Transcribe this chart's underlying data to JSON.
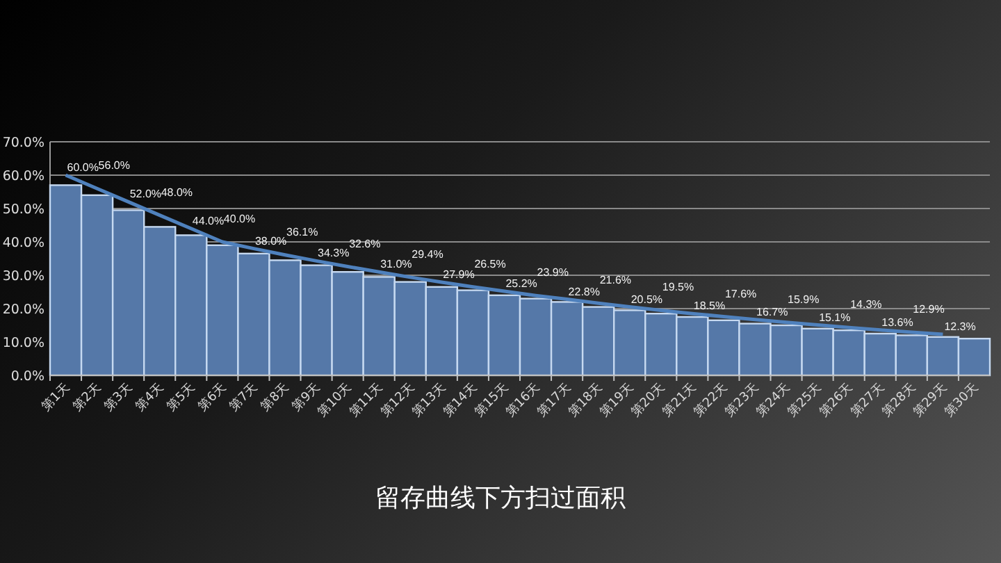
{
  "chart_data": {
    "type": "bar",
    "title": "留存曲线下方扫过面积",
    "categories": [
      "第1天",
      "第2天",
      "第3天",
      "第4天",
      "第5天",
      "第6天",
      "第7天",
      "第8天",
      "第9天",
      "第10天",
      "第11天",
      "第12天",
      "第13天",
      "第14天",
      "第15天",
      "第16天",
      "第17天",
      "第18天",
      "第19天",
      "第20天",
      "第21天",
      "第22天",
      "第23天",
      "第24天",
      "第25天",
      "第26天",
      "第27天",
      "第28天",
      "第29天",
      "第30天"
    ],
    "series": [
      {
        "color": "#5578a8",
        "values": [
          57,
          54,
          49.5,
          44.5,
          42,
          39,
          36.5,
          34.5,
          33,
          31,
          29.5,
          28,
          26.5,
          25.5,
          24,
          23,
          22,
          20.5,
          19.5,
          18.5,
          17.5,
          16.5,
          15.5,
          15,
          14,
          13.5,
          12.5,
          12,
          11.5,
          11
        ]
      },
      {
        "type": "line",
        "color": "#4f81bd",
        "data_labels": true,
        "value_labels": [
          "60.0%",
          "56.0%",
          "52.0%",
          "48.0%",
          "44.0%",
          "40.0%",
          "38.0%",
          "36.1%",
          "34.3%",
          "32.6%",
          "31.0%",
          "29.4%",
          "27.9%",
          "26.5%",
          "25.2%",
          "23.9%",
          "22.8%",
          "21.6%",
          "20.5%",
          "19.5%",
          "18.5%",
          "17.6%",
          "16.7%",
          "15.9%",
          "15.1%",
          "14.3%",
          "13.6%",
          "12.9%",
          "12.3%",
          null
        ],
        "values": [
          60.0,
          56.0,
          52.0,
          48.0,
          44.0,
          40.0,
          38.0,
          36.1,
          34.3,
          32.6,
          31.0,
          29.4,
          27.9,
          26.5,
          25.2,
          23.9,
          22.8,
          21.6,
          20.5,
          19.5,
          18.5,
          17.6,
          16.7,
          15.9,
          15.1,
          14.3,
          13.6,
          12.9,
          12.3,
          null
        ]
      }
    ],
    "ylim": [
      0,
      70
    ],
    "yticks": [
      {
        "value": 0,
        "label": "0.0%"
      },
      {
        "value": 10,
        "label": "10.0%"
      },
      {
        "value": 20,
        "label": "20.0%"
      },
      {
        "value": 30,
        "label": "30.0%"
      },
      {
        "value": 40,
        "label": "40.0%"
      },
      {
        "value": 50,
        "label": "50.0%"
      },
      {
        "value": 60,
        "label": "60.0%"
      },
      {
        "value": 70,
        "label": "70.0%"
      }
    ],
    "grid": "y"
  }
}
